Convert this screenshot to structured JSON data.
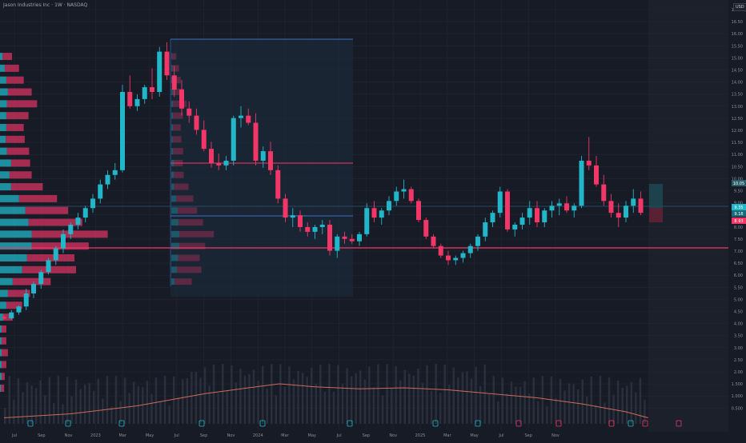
{
  "title": "Jason Industries Inc · 1W · NASDAQ",
  "currency": "USD",
  "colors": {
    "background": "#171b26",
    "up": "#22b7c8",
    "down": "#f23668",
    "grid": "#222734",
    "axis_text": "#8a8f9c",
    "blue_line": "#3d6fc4",
    "red_line": "#f23668",
    "volume": "#2a2f3c",
    "volume_ma": "#d06a5a",
    "range_box": "#1c2a3b"
  },
  "y_axis_ticks": [
    "17.00",
    "16.50",
    "16.00",
    "15.50",
    "15.00",
    "14.50",
    "14.00",
    "13.50",
    "13.00",
    "12.50",
    "12.00",
    "11.50",
    "11.00",
    "10.50",
    "10.00",
    "9.50",
    "9.00",
    "8.50",
    "8.00",
    "7.50",
    "7.00",
    "6.50",
    "6.00",
    "5.50",
    "5.00",
    "4.50",
    "4.00",
    "3.50",
    "3.00",
    "2.50",
    "2.00",
    "1.500",
    "1.000",
    "0.500"
  ],
  "x_axis_ticks": [
    "Jul",
    "Sep",
    "Nov",
    "2023",
    "Mar",
    "May",
    "Jul",
    "Sep",
    "Nov",
    "2024",
    "Mar",
    "May",
    "Jul",
    "Sep",
    "Nov",
    "2025",
    "Mar",
    "May",
    "Jul",
    "Sep",
    "Nov"
  ],
  "price_badges": [
    "10.05",
    "9.35",
    "9.18",
    "8.93"
  ],
  "chart_data": {
    "type": "candlestick",
    "title": "Jason Industries Inc · 1W · NASDAQ",
    "ylim": [
      0.5,
      17.3
    ],
    "levels": [
      {
        "color": "blue",
        "value": 17.0
      },
      {
        "color": "red",
        "value": 11.45
      },
      {
        "color": "blue",
        "value": 9.8
      },
      {
        "color": "red",
        "value": 8.45
      }
    ],
    "ohlc": [
      [
        5.0,
        5.1,
        4.9,
        4.95
      ],
      [
        4.95,
        5.3,
        4.9,
        5.2
      ],
      [
        5.2,
        5.5,
        5.1,
        5.45
      ],
      [
        5.45,
        6.2,
        5.3,
        6.0
      ],
      [
        6.0,
        6.5,
        5.8,
        6.4
      ],
      [
        6.4,
        7.0,
        6.2,
        6.9
      ],
      [
        6.9,
        7.5,
        6.8,
        7.4
      ],
      [
        7.4,
        8.0,
        7.2,
        7.9
      ],
      [
        7.9,
        8.7,
        7.7,
        8.5
      ],
      [
        8.5,
        9.0,
        8.3,
        8.9
      ],
      [
        8.9,
        9.4,
        8.7,
        9.2
      ],
      [
        9.2,
        9.7,
        9.0,
        9.6
      ],
      [
        9.6,
        10.2,
        9.4,
        10.0
      ],
      [
        10.0,
        10.8,
        9.8,
        10.6
      ],
      [
        10.6,
        11.2,
        10.4,
        11.0
      ],
      [
        11.0,
        11.5,
        10.8,
        11.2
      ],
      [
        11.2,
        14.8,
        11.1,
        14.5
      ],
      [
        14.5,
        15.2,
        13.8,
        13.9
      ],
      [
        13.9,
        14.4,
        13.7,
        14.2
      ],
      [
        14.2,
        14.8,
        14.0,
        14.7
      ],
      [
        14.7,
        15.5,
        14.2,
        14.5
      ],
      [
        14.5,
        16.4,
        14.3,
        16.2
      ],
      [
        16.2,
        16.6,
        15.0,
        15.2
      ],
      [
        15.2,
        15.6,
        14.3,
        14.6
      ],
      [
        14.6,
        15.0,
        13.5,
        13.8
      ],
      [
        13.8,
        14.1,
        13.2,
        13.5
      ],
      [
        13.5,
        13.8,
        12.7,
        12.9
      ],
      [
        12.9,
        13.3,
        12.0,
        12.1
      ],
      [
        12.1,
        12.4,
        11.3,
        11.5
      ],
      [
        11.5,
        11.9,
        11.2,
        11.4
      ],
      [
        11.4,
        11.8,
        11.2,
        11.6
      ],
      [
        11.6,
        13.5,
        11.4,
        13.4
      ],
      [
        13.4,
        13.9,
        13.0,
        13.5
      ],
      [
        13.5,
        13.8,
        13.1,
        13.2
      ],
      [
        13.2,
        13.6,
        11.4,
        11.6
      ],
      [
        11.6,
        12.2,
        11.3,
        12.0
      ],
      [
        12.0,
        12.4,
        11.0,
        11.2
      ],
      [
        11.2,
        11.4,
        9.8,
        10.0
      ],
      [
        10.0,
        10.2,
        9.0,
        9.2
      ],
      [
        9.2,
        9.6,
        8.8,
        9.3
      ],
      [
        9.3,
        9.5,
        8.6,
        8.8
      ],
      [
        8.8,
        9.0,
        8.4,
        8.6
      ],
      [
        8.6,
        8.9,
        8.3,
        8.8
      ],
      [
        8.8,
        9.1,
        8.5,
        8.9
      ],
      [
        8.9,
        9.1,
        7.6,
        7.8
      ],
      [
        7.8,
        8.5,
        7.5,
        8.4
      ],
      [
        8.4,
        8.6,
        8.1,
        8.3
      ],
      [
        8.3,
        8.5,
        8.1,
        8.2
      ],
      [
        8.2,
        8.6,
        8.0,
        8.5
      ],
      [
        8.5,
        9.8,
        8.4,
        9.6
      ],
      [
        9.6,
        9.9,
        9.0,
        9.2
      ],
      [
        9.2,
        9.6,
        8.9,
        9.5
      ],
      [
        9.5,
        10.1,
        9.3,
        9.9
      ],
      [
        9.9,
        10.5,
        9.7,
        10.3
      ],
      [
        10.3,
        10.8,
        10.0,
        10.4
      ],
      [
        10.4,
        10.5,
        9.8,
        9.9
      ],
      [
        9.9,
        10.0,
        9.0,
        9.1
      ],
      [
        9.1,
        9.2,
        8.3,
        8.4
      ],
      [
        8.4,
        8.5,
        7.9,
        8.0
      ],
      [
        8.0,
        8.1,
        7.5,
        7.6
      ],
      [
        7.6,
        7.8,
        7.2,
        7.4
      ],
      [
        7.4,
        7.6,
        7.2,
        7.5
      ],
      [
        7.5,
        7.8,
        7.3,
        7.7
      ],
      [
        7.7,
        8.1,
        7.5,
        8.0
      ],
      [
        8.0,
        8.5,
        7.8,
        8.4
      ],
      [
        8.4,
        9.2,
        8.2,
        9.0
      ],
      [
        9.0,
        9.5,
        8.8,
        9.4
      ],
      [
        9.4,
        10.5,
        9.2,
        10.3
      ],
      [
        10.3,
        10.4,
        8.6,
        8.7
      ],
      [
        8.7,
        9.0,
        8.4,
        8.9
      ],
      [
        8.9,
        9.4,
        8.7,
        9.2
      ],
      [
        9.2,
        9.9,
        8.9,
        9.6
      ],
      [
        9.6,
        9.9,
        8.8,
        9.0
      ],
      [
        9.0,
        9.6,
        8.8,
        9.5
      ],
      [
        9.5,
        9.9,
        9.2,
        9.7
      ],
      [
        9.7,
        10.0,
        9.3,
        9.8
      ],
      [
        9.8,
        10.1,
        9.4,
        9.5
      ],
      [
        9.5,
        9.8,
        9.2,
        9.7
      ],
      [
        9.7,
        11.8,
        9.6,
        11.6
      ],
      [
        11.6,
        12.6,
        11.2,
        11.4
      ],
      [
        11.4,
        11.8,
        10.5,
        10.6
      ],
      [
        10.6,
        11.0,
        9.7,
        9.9
      ],
      [
        9.9,
        10.2,
        9.2,
        9.4
      ],
      [
        9.4,
        9.8,
        8.8,
        9.2
      ],
      [
        9.2,
        9.9,
        9.0,
        9.7
      ],
      [
        9.7,
        10.4,
        9.4,
        10.0
      ],
      [
        10.0,
        10.3,
        9.3,
        9.4
      ]
    ],
    "volume_ma": [
      [
        0,
        0.3
      ],
      [
        15,
        0.5
      ],
      [
        30,
        0.9
      ],
      [
        45,
        1.5
      ],
      [
        55,
        1.8
      ],
      [
        62,
        2.0
      ],
      [
        70,
        1.85
      ],
      [
        80,
        1.75
      ],
      [
        90,
        1.8
      ],
      [
        100,
        1.7
      ],
      [
        110,
        1.5
      ],
      [
        120,
        1.3
      ],
      [
        130,
        1.0
      ],
      [
        140,
        0.6
      ],
      [
        145,
        0.3
      ]
    ],
    "volume_profile": [
      {
        "price": 16.0,
        "up": 0.08,
        "down": 0.3
      },
      {
        "price": 15.5,
        "up": 0.15,
        "down": 0.45
      },
      {
        "price": 15.0,
        "up": 0.2,
        "down": 0.55
      },
      {
        "price": 14.5,
        "up": 0.25,
        "down": 0.75
      },
      {
        "price": 14.0,
        "up": 0.22,
        "down": 0.95
      },
      {
        "price": 13.5,
        "up": 0.2,
        "down": 0.7
      },
      {
        "price": 13.0,
        "up": 0.2,
        "down": 0.55
      },
      {
        "price": 12.5,
        "up": 0.18,
        "down": 0.6
      },
      {
        "price": 12.0,
        "up": 0.22,
        "down": 0.7
      },
      {
        "price": 11.5,
        "up": 0.35,
        "down": 0.6
      },
      {
        "price": 11.0,
        "up": 0.3,
        "down": 0.7
      },
      {
        "price": 10.5,
        "up": 0.35,
        "down": 1.0
      },
      {
        "price": 10.0,
        "up": 0.6,
        "down": 1.2
      },
      {
        "price": 9.5,
        "up": 0.8,
        "down": 1.35
      },
      {
        "price": 9.0,
        "up": 0.9,
        "down": 1.7
      },
      {
        "price": 8.5,
        "up": 1.0,
        "down": 2.4
      },
      {
        "price": 8.0,
        "up": 1.0,
        "down": 1.8
      },
      {
        "price": 7.5,
        "up": 0.85,
        "down": 1.5
      },
      {
        "price": 7.0,
        "up": 0.7,
        "down": 1.7
      },
      {
        "price": 6.5,
        "up": 0.4,
        "down": 1.2
      },
      {
        "price": 6.0,
        "up": 0.25,
        "down": 0.7
      },
      {
        "price": 5.5,
        "up": 0.2,
        "down": 0.5
      },
      {
        "price": 5.0,
        "up": 0.1,
        "down": 0.3
      },
      {
        "price": 4.5,
        "up": 0.05,
        "down": 0.15
      },
      {
        "price": 4.0,
        "up": 0.05,
        "down": 0.15
      },
      {
        "price": 3.5,
        "up": 0.05,
        "down": 0.2
      },
      {
        "price": 3.0,
        "up": 0.05,
        "down": 0.15
      },
      {
        "price": 2.5,
        "up": 0.05,
        "down": 0.1
      },
      {
        "price": 2.0,
        "up": 0.03,
        "down": 0.1
      }
    ]
  }
}
